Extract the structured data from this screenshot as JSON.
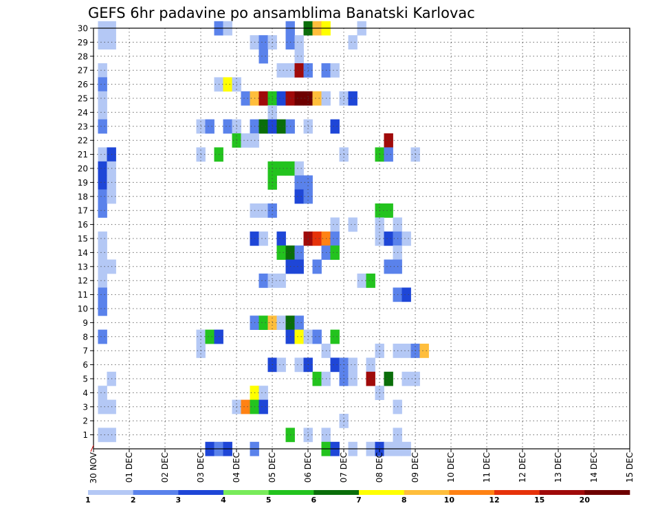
{
  "chart_data": {
    "type": "heatmap",
    "title": "GEFS 6hr padavine po ansamblima Banatski Karlovac",
    "xlabel": "",
    "ylabel": "",
    "x_tick_labels": [
      "30 NOV",
      "01 DEC",
      "02 DEC",
      "03 DEC",
      "04 DEC",
      "05 DEC",
      "06 DEC",
      "07 DEC",
      "08 DEC",
      "09 DEC",
      "10 DEC",
      "11 DEC",
      "12 DEC",
      "13 DEC",
      "14 DEC",
      "15 DEC"
    ],
    "y_tick_labels": [
      "1",
      "2",
      "3",
      "4",
      "5",
      "6",
      "7",
      "8",
      "9",
      "10",
      "11",
      "12",
      "13",
      "14",
      "15",
      "16",
      "17",
      "18",
      "19",
      "20",
      "21",
      "22",
      "23",
      "24",
      "25",
      "26",
      "27",
      "28",
      "29",
      "30"
    ],
    "x_range_steps": [
      0,
      60
    ],
    "y_range": [
      0,
      30
    ],
    "grid": true,
    "legend_position": "bottom",
    "legend": {
      "labels": [
        "1",
        "2",
        "3",
        "4",
        "5",
        "6",
        "7",
        "8",
        "10",
        "12",
        "15",
        "20"
      ],
      "colors": [
        "#b4c8f5",
        "#5a82eb",
        "#1e46d7",
        "#78eb5a",
        "#23c31e",
        "#0a6e0a",
        "#ffff00",
        "#ffbe3c",
        "#ff8214",
        "#e6320a",
        "#a00a0a",
        "#6e0000"
      ]
    },
    "cells": [
      {
        "m": 30,
        "s": [
          [
            1,
            0
          ],
          [
            2,
            0
          ],
          [
            14,
            1
          ],
          [
            15,
            0
          ],
          [
            22,
            1
          ],
          [
            24,
            5
          ],
          [
            25,
            7
          ],
          [
            26,
            6
          ],
          [
            30,
            0
          ]
        ]
      },
      {
        "m": 29,
        "s": [
          [
            1,
            0
          ],
          [
            2,
            0
          ],
          [
            18,
            0
          ],
          [
            19,
            1
          ],
          [
            20,
            0
          ],
          [
            22,
            1
          ],
          [
            23,
            0
          ],
          [
            29,
            0
          ]
        ]
      },
      {
        "m": 28,
        "s": [
          [
            19,
            1
          ],
          [
            23,
            0
          ],
          [
            23,
            0
          ],
          [
            23,
            0
          ],
          [
            23,
            0
          ],
          [
            23,
            0
          ]
        ]
      },
      {
        "m": 27,
        "s": [
          [
            1,
            0
          ],
          [
            21,
            0
          ],
          [
            22,
            0
          ],
          [
            23,
            10
          ],
          [
            24,
            1
          ],
          [
            26,
            1
          ],
          [
            27,
            0
          ]
        ]
      },
      {
        "m": 26,
        "s": [
          [
            1,
            1
          ],
          [
            14,
            0
          ],
          [
            15,
            6
          ],
          [
            16,
            0
          ]
        ]
      },
      {
        "m": 25,
        "s": [
          [
            1,
            0
          ],
          [
            17,
            1
          ],
          [
            18,
            7
          ],
          [
            19,
            10
          ],
          [
            20,
            4
          ],
          [
            21,
            2
          ],
          [
            22,
            10
          ],
          [
            23,
            11
          ],
          [
            24,
            11
          ],
          [
            25,
            7
          ],
          [
            26,
            0
          ],
          [
            28,
            0
          ],
          [
            29,
            2
          ]
        ]
      },
      {
        "m": 24,
        "s": [
          [
            1,
            0
          ],
          [
            20,
            0
          ]
        ]
      },
      {
        "m": 23,
        "s": [
          [
            1,
            1
          ],
          [
            12,
            0
          ],
          [
            13,
            1
          ],
          [
            15,
            1
          ],
          [
            16,
            0
          ],
          [
            18,
            1
          ],
          [
            19,
            5
          ],
          [
            20,
            2
          ],
          [
            21,
            5
          ],
          [
            22,
            1
          ],
          [
            24,
            0
          ],
          [
            27,
            2
          ]
        ]
      },
      {
        "m": 22,
        "s": [
          [
            16,
            4
          ],
          [
            17,
            0
          ],
          [
            18,
            0
          ],
          [
            33,
            10
          ]
        ]
      },
      {
        "m": 21,
        "s": [
          [
            1,
            0
          ],
          [
            2,
            2
          ],
          [
            12,
            0
          ],
          [
            14,
            4
          ],
          [
            28,
            0
          ],
          [
            32,
            4
          ],
          [
            33,
            1
          ],
          [
            36,
            0
          ]
        ]
      },
      {
        "m": 20,
        "s": [
          [
            1,
            2
          ],
          [
            2,
            0
          ],
          [
            20,
            4
          ],
          [
            21,
            4
          ],
          [
            22,
            4
          ],
          [
            23,
            0
          ]
        ]
      },
      {
        "m": 19,
        "s": [
          [
            1,
            2
          ],
          [
            2,
            0
          ],
          [
            20,
            4
          ],
          [
            23,
            1
          ],
          [
            24,
            1
          ]
        ]
      },
      {
        "m": 18,
        "s": [
          [
            1,
            1
          ],
          [
            2,
            0
          ],
          [
            23,
            2
          ],
          [
            24,
            1
          ]
        ]
      },
      {
        "m": 17,
        "s": [
          [
            1,
            1
          ],
          [
            18,
            0
          ],
          [
            19,
            0
          ],
          [
            20,
            1
          ],
          [
            32,
            4
          ],
          [
            33,
            4
          ]
        ]
      },
      {
        "m": 16,
        "s": [
          [
            27,
            0
          ],
          [
            29,
            0
          ],
          [
            32,
            0
          ],
          [
            34,
            0
          ]
        ]
      },
      {
        "m": 15,
        "s": [
          [
            1,
            0
          ],
          [
            18,
            2
          ],
          [
            19,
            0
          ],
          [
            21,
            2
          ],
          [
            24,
            10
          ],
          [
            25,
            9
          ],
          [
            26,
            8
          ],
          [
            27,
            1
          ],
          [
            32,
            0
          ],
          [
            33,
            2
          ],
          [
            34,
            1
          ],
          [
            35,
            0
          ]
        ]
      },
      {
        "m": 14,
        "s": [
          [
            1,
            0
          ],
          [
            21,
            4
          ],
          [
            22,
            5
          ],
          [
            23,
            1
          ],
          [
            26,
            1
          ],
          [
            27,
            4
          ],
          [
            34,
            0
          ]
        ]
      },
      {
        "m": 13,
        "s": [
          [
            1,
            0
          ],
          [
            2,
            0
          ],
          [
            22,
            2
          ],
          [
            23,
            2
          ],
          [
            25,
            1
          ],
          [
            33,
            1
          ],
          [
            34,
            1
          ]
        ]
      },
      {
        "m": 12,
        "s": [
          [
            1,
            0
          ],
          [
            19,
            1
          ],
          [
            20,
            0
          ],
          [
            21,
            0
          ],
          [
            30,
            0
          ],
          [
            31,
            4
          ]
        ]
      },
      {
        "m": 11,
        "s": [
          [
            1,
            1
          ],
          [
            34,
            1
          ],
          [
            35,
            2
          ]
        ]
      },
      {
        "m": 10,
        "s": [
          [
            1,
            1
          ]
        ]
      },
      {
        "m": 9,
        "s": [
          [
            18,
            1
          ],
          [
            19,
            4
          ],
          [
            20,
            7
          ],
          [
            21,
            0
          ],
          [
            22,
            5
          ],
          [
            23,
            1
          ]
        ]
      },
      {
        "m": 8,
        "s": [
          [
            1,
            1
          ],
          [
            12,
            0
          ],
          [
            13,
            4
          ],
          [
            14,
            2
          ],
          [
            22,
            2
          ],
          [
            23,
            6
          ],
          [
            24,
            0
          ],
          [
            25,
            1
          ],
          [
            27,
            4
          ]
        ]
      },
      {
        "m": 7,
        "s": [
          [
            12,
            0
          ],
          [
            26,
            0
          ],
          [
            32,
            0
          ],
          [
            34,
            0
          ],
          [
            35,
            0
          ],
          [
            36,
            1
          ],
          [
            37,
            7
          ]
        ]
      },
      {
        "m": 6,
        "s": [
          [
            20,
            2
          ],
          [
            21,
            0
          ],
          [
            23,
            0
          ],
          [
            24,
            2
          ],
          [
            27,
            2
          ],
          [
            28,
            1
          ],
          [
            29,
            0
          ],
          [
            31,
            0
          ]
        ]
      },
      {
        "m": 5,
        "s": [
          [
            2,
            0
          ],
          [
            25,
            4
          ],
          [
            26,
            0
          ],
          [
            28,
            1
          ],
          [
            29,
            0
          ],
          [
            31,
            10
          ],
          [
            33,
            5
          ],
          [
            35,
            0
          ],
          [
            36,
            0
          ]
        ]
      },
      {
        "m": 4,
        "s": [
          [
            1,
            0
          ],
          [
            18,
            6
          ],
          [
            19,
            0
          ],
          [
            32,
            0
          ]
        ]
      },
      {
        "m": 3,
        "s": [
          [
            1,
            0
          ],
          [
            2,
            0
          ],
          [
            16,
            0
          ],
          [
            17,
            8
          ],
          [
            18,
            4
          ],
          [
            19,
            2
          ],
          [
            34,
            0
          ]
        ]
      },
      {
        "m": 2,
        "s": [
          [
            28,
            0
          ]
        ]
      },
      {
        "m": 1,
        "s": [
          [
            1,
            0
          ],
          [
            2,
            0
          ],
          [
            22,
            4
          ],
          [
            24,
            0
          ],
          [
            26,
            0
          ],
          [
            34,
            0
          ]
        ]
      },
      {
        "m": 0,
        "s": [
          [
            13,
            2
          ],
          [
            14,
            1
          ],
          [
            15,
            2
          ],
          [
            18,
            1
          ],
          [
            26,
            4
          ],
          [
            27,
            2
          ],
          [
            29,
            0
          ],
          [
            31,
            0
          ],
          [
            32,
            2
          ],
          [
            33,
            0
          ],
          [
            34,
            0
          ],
          [
            35,
            0
          ]
        ]
      }
    ]
  }
}
